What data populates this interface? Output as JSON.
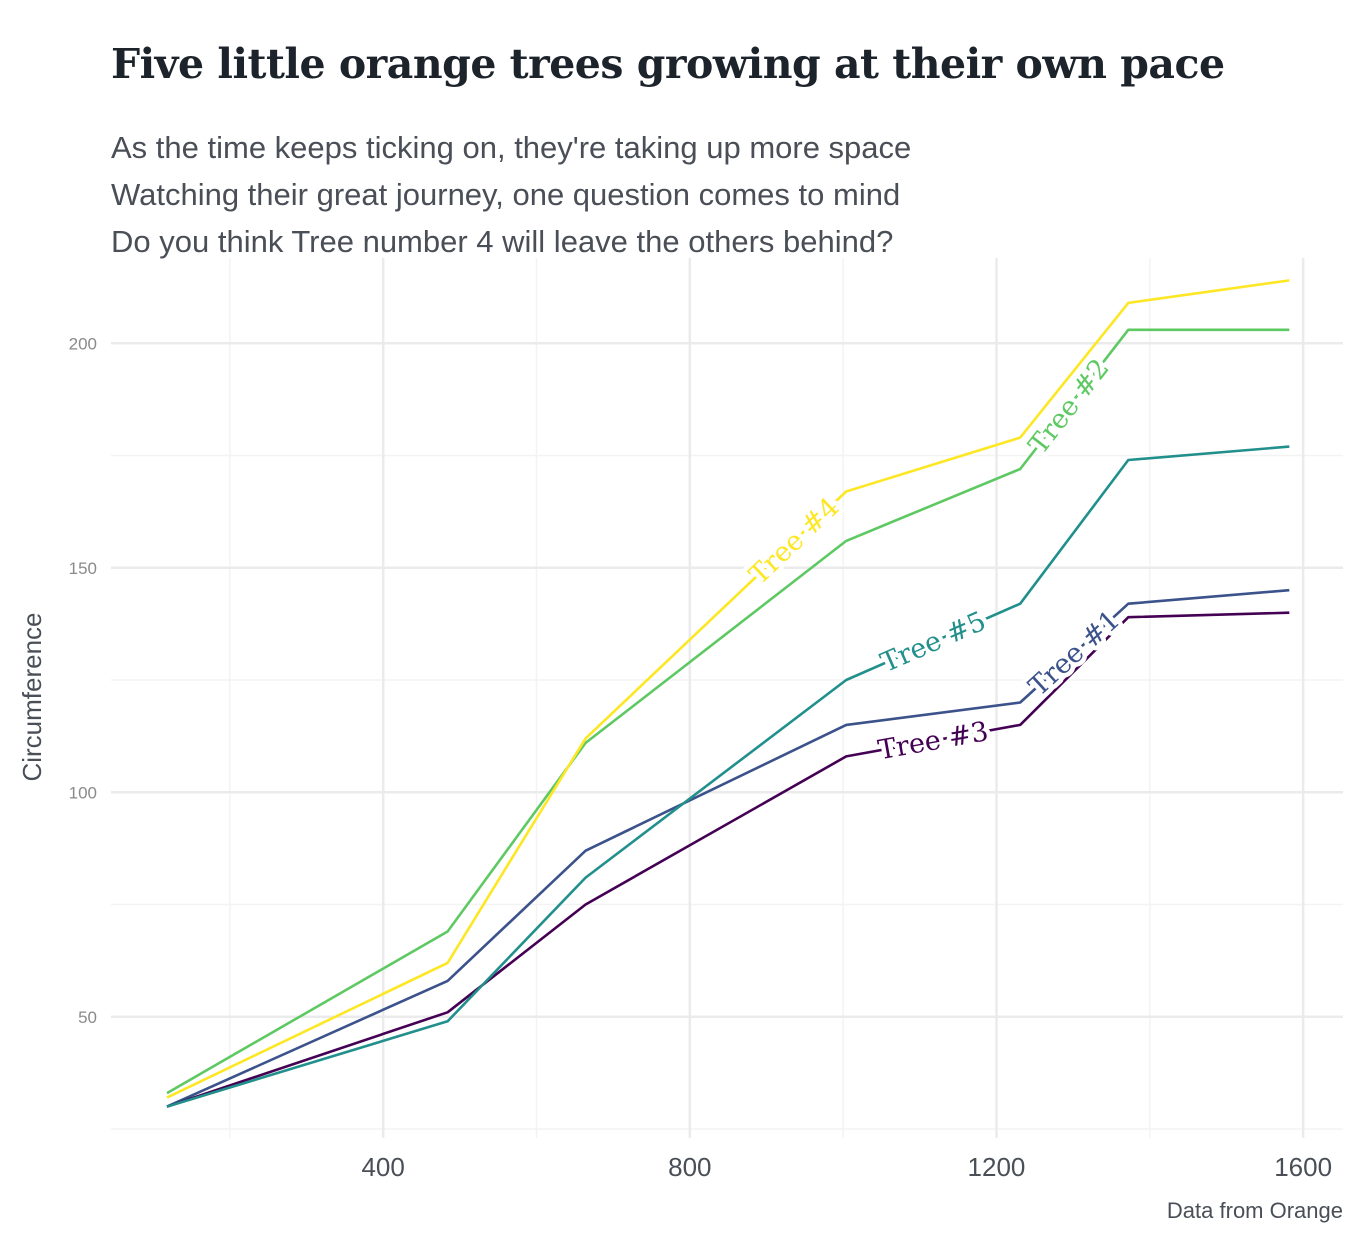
{
  "title": "Five little orange trees growing at their own pace",
  "subtitle": [
    "As the time keeps ticking on, they're taking up more space",
    "Watching their great journey, one question comes to mind",
    "Do you think Tree number 4 will leave the others behind?"
  ],
  "caption": "Data from Orange",
  "chart_data": {
    "type": "line",
    "xlabel": "",
    "ylabel": "Circumference",
    "xlim": [
      45,
      1652
    ],
    "ylim": [
      23,
      219
    ],
    "x_ticks": [
      400,
      800,
      1200,
      1600
    ],
    "y_ticks": [
      50,
      100,
      150,
      200
    ],
    "grid": true,
    "legend": "none",
    "x": [
      118,
      484,
      664,
      1004,
      1231,
      1372,
      1582
    ],
    "series": [
      {
        "name": "Tree #1",
        "color": "#3b528b",
        "values": [
          30,
          58,
          87,
          115,
          120,
          142,
          145
        ]
      },
      {
        "name": "Tree #2",
        "color": "#5ec962",
        "values": [
          33,
          69,
          111,
          156,
          172,
          203,
          203
        ]
      },
      {
        "name": "Tree #3",
        "color": "#440154",
        "values": [
          30,
          51,
          75,
          108,
          115,
          139,
          140
        ]
      },
      {
        "name": "Tree #4",
        "color": "#fde725",
        "values": [
          32,
          62,
          112,
          167,
          179,
          209,
          214
        ]
      },
      {
        "name": "Tree #5",
        "color": "#21908c",
        "values": [
          30,
          49,
          81,
          125,
          142,
          174,
          177
        ]
      }
    ]
  }
}
